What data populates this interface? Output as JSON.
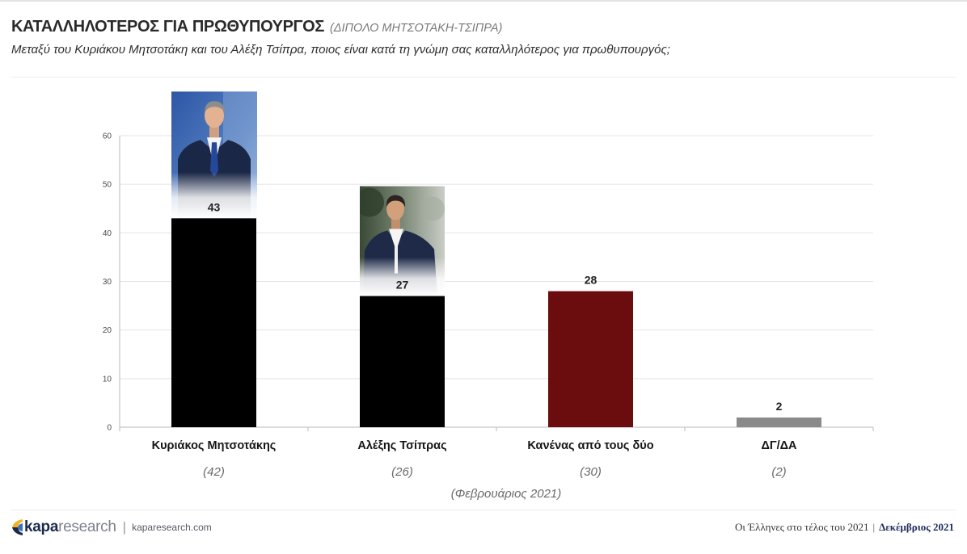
{
  "header": {
    "title": "ΚΑΤΑΛΛΗΛΟΤΕΡΟΣ ΓΙΑ ΠΡΩΘΥΠΟΥΡΓΟΣ",
    "title_note": "(ΔΙΠΟΛΟ ΜΗΤΣΟΤΑΚΗ-ΤΣΙΠΡΑ)",
    "subtitle": "Μεταξύ του Κυριάκου Μητσοτάκη και του Αλέξη Τσίπρα, ποιος είναι κατά τη γνώμη σας καταλληλότερος για πρωθυπουργός;"
  },
  "chart_data": {
    "type": "bar",
    "categories": [
      "Κυριάκος Μητσοτάκης",
      "Αλέξης Τσίπρας",
      "Κανένας από τους δύο",
      "ΔΓ/ΔΑ"
    ],
    "values": [
      43,
      27,
      28,
      2
    ],
    "colors": [
      "#000000",
      "#000000",
      "#6b0c0f",
      "#8a8a8a"
    ],
    "previous_values": [
      42,
      26,
      30,
      2
    ],
    "previous_label": "(Φεβρουάριος 2021)",
    "ylim": [
      0,
      60
    ],
    "yticks": [
      0,
      10,
      20,
      30,
      40,
      50,
      60
    ],
    "grid": true,
    "legend": "none"
  },
  "footer": {
    "logo": {
      "part1": "kapa",
      "part2": "research"
    },
    "separator": "|",
    "website": "kaparesearch.com",
    "report_title": "Οι Έλληνες στο τέλος του 2021",
    "report_date": "Δεκέμβριος 2021",
    "accent_color": "#1f2d5c"
  }
}
